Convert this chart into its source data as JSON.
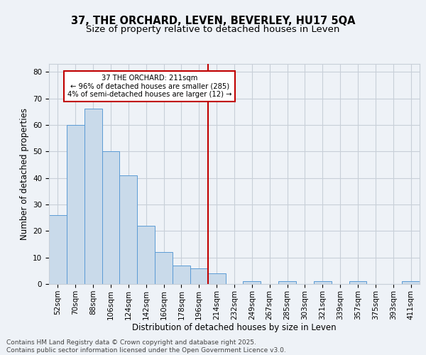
{
  "title_line1": "37, THE ORCHARD, LEVEN, BEVERLEY, HU17 5QA",
  "title_line2": "Size of property relative to detached houses in Leven",
  "xlabel": "Distribution of detached houses by size in Leven",
  "ylabel": "Number of detached properties",
  "categories": [
    "52sqm",
    "70sqm",
    "88sqm",
    "106sqm",
    "124sqm",
    "142sqm",
    "160sqm",
    "178sqm",
    "196sqm",
    "214sqm",
    "232sqm",
    "249sqm",
    "267sqm",
    "285sqm",
    "303sqm",
    "321sqm",
    "339sqm",
    "357sqm",
    "375sqm",
    "393sqm",
    "411sqm"
  ],
  "values": [
    26,
    60,
    66,
    50,
    41,
    22,
    12,
    7,
    6,
    4,
    0,
    1,
    0,
    1,
    0,
    1,
    0,
    1,
    0,
    0,
    1
  ],
  "bar_color": "#c9daea",
  "bar_edge_color": "#5b9bd5",
  "vline_x_index": 8.5,
  "vline_color": "#c00000",
  "annotation_text": "37 THE ORCHARD: 211sqm\n← 96% of detached houses are smaller (285)\n4% of semi-detached houses are larger (12) →",
  "annotation_box_color": "#ffffff",
  "annotation_box_edge": "#c00000",
  "ylim": [
    0,
    83
  ],
  "yticks": [
    0,
    10,
    20,
    30,
    40,
    50,
    60,
    70,
    80
  ],
  "footnote": "Contains HM Land Registry data © Crown copyright and database right 2025.\nContains public sector information licensed under the Open Government Licence v3.0.",
  "bg_color": "#eef2f7",
  "plot_bg_color": "#eef2f7",
  "grid_color": "#c8cfd8",
  "title_fontsize": 10.5,
  "subtitle_fontsize": 9.5,
  "label_fontsize": 8.5,
  "tick_fontsize": 7.5,
  "footnote_fontsize": 6.5
}
